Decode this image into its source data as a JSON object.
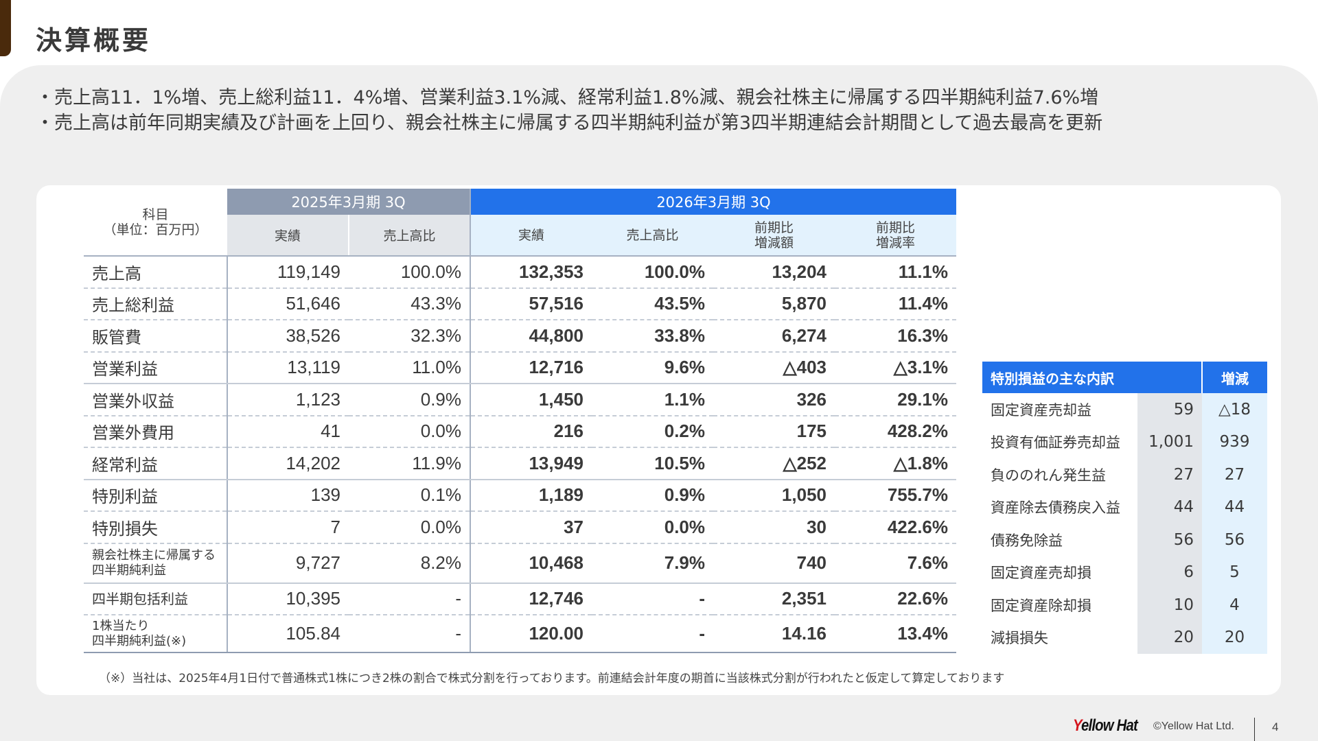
{
  "header": {
    "title": "決算概要"
  },
  "summary": {
    "bullets": [
      "・売上高11．1%増、売上総利益11．4%増、営業利益3.1%減、経常利益1.8%減、親会社株主に帰属する四半期純利益7.6%増",
      "・売上高は前年同期実績及び計画を上回り、親会社株主に帰属する四半期純利益が第3四半期連結会計期間として過去最高を更新"
    ]
  },
  "main_table": {
    "label_header_line1": "科目",
    "label_header_line2": "（単位：百万円）",
    "prev_period": "2025年3月期 3Q",
    "cur_period": "2026年3月期 3Q",
    "prev_cols": [
      "実績",
      "売上高比"
    ],
    "cur_cols": [
      {
        "line1": "実績",
        "line2": ""
      },
      {
        "line1": "売上高比",
        "line2": ""
      },
      {
        "line1": "前期比",
        "line2": "増減額"
      },
      {
        "line1": "前期比",
        "line2": "増減率"
      }
    ],
    "rows": [
      {
        "label": "売上高",
        "label2": "",
        "prev_actual": "119,149",
        "prev_ratio": "100.0%",
        "cur_actual": "132,353",
        "cur_ratio": "100.0%",
        "yoy_amount": "13,204",
        "yoy_rate": "11.1%"
      },
      {
        "label": "売上総利益",
        "label2": "",
        "prev_actual": "51,646",
        "prev_ratio": "43.3%",
        "cur_actual": "57,516",
        "cur_ratio": "43.5%",
        "yoy_amount": "5,870",
        "yoy_rate": "11.4%"
      },
      {
        "label": "販管費",
        "label2": "",
        "prev_actual": "38,526",
        "prev_ratio": "32.3%",
        "cur_actual": "44,800",
        "cur_ratio": "33.8%",
        "yoy_amount": "6,274",
        "yoy_rate": "16.3%"
      },
      {
        "label": "営業利益",
        "label2": "",
        "prev_actual": "13,119",
        "prev_ratio": "11.0%",
        "cur_actual": "12,716",
        "cur_ratio": "9.6%",
        "yoy_amount": "△403",
        "yoy_rate": "△3.1%"
      },
      {
        "label": "営業外収益",
        "label2": "",
        "prev_actual": "1,123",
        "prev_ratio": "0.9%",
        "cur_actual": "1,450",
        "cur_ratio": "1.1%",
        "yoy_amount": "326",
        "yoy_rate": "29.1%"
      },
      {
        "label": "営業外費用",
        "label2": "",
        "prev_actual": "41",
        "prev_ratio": "0.0%",
        "cur_actual": "216",
        "cur_ratio": "0.2%",
        "yoy_amount": "175",
        "yoy_rate": "428.2%"
      },
      {
        "label": "経常利益",
        "label2": "",
        "prev_actual": "14,202",
        "prev_ratio": "11.9%",
        "cur_actual": "13,949",
        "cur_ratio": "10.5%",
        "yoy_amount": "△252",
        "yoy_rate": "△1.8%"
      },
      {
        "label": "特別利益",
        "label2": "",
        "prev_actual": "139",
        "prev_ratio": "0.1%",
        "cur_actual": "1,189",
        "cur_ratio": "0.9%",
        "yoy_amount": "1,050",
        "yoy_rate": "755.7%"
      },
      {
        "label": "特別損失",
        "label2": "",
        "prev_actual": "7",
        "prev_ratio": "0.0%",
        "cur_actual": "37",
        "cur_ratio": "0.0%",
        "yoy_amount": "30",
        "yoy_rate": "422.6%"
      },
      {
        "label": "親会社株主に帰属する",
        "label2": "四半期純利益",
        "prev_actual": "9,727",
        "prev_ratio": "8.2%",
        "cur_actual": "10,468",
        "cur_ratio": "7.9%",
        "yoy_amount": "740",
        "yoy_rate": "7.6%"
      },
      {
        "label": "四半期包括利益",
        "label2": "",
        "prev_actual": "10,395",
        "prev_ratio": "-",
        "cur_actual": "12,746",
        "cur_ratio": "-",
        "yoy_amount": "2,351",
        "yoy_rate": "22.6%"
      },
      {
        "label": "1株当たり",
        "label2": "四半期純利益(※)",
        "prev_actual": "105.84",
        "prev_ratio": "-",
        "cur_actual": "120.00",
        "cur_ratio": "-",
        "yoy_amount": "14.16",
        "yoy_rate": "13.4%"
      }
    ]
  },
  "side_table": {
    "title": "特別損益の主な内訳",
    "delta_header": "増減",
    "rows": [
      {
        "label": "固定資産売却益",
        "value": "59",
        "delta": "△18"
      },
      {
        "label": "投資有価証券売却益",
        "value": "1,001",
        "delta": "939"
      },
      {
        "label": "負ののれん発生益",
        "value": "27",
        "delta": "27"
      },
      {
        "label": "資産除去債務戻入益",
        "value": "44",
        "delta": "44"
      },
      {
        "label": "債務免除益",
        "value": "56",
        "delta": "56"
      },
      {
        "label": "固定資産売却損",
        "value": "6",
        "delta": "5"
      },
      {
        "label": "固定資産除却損",
        "value": "10",
        "delta": "4"
      },
      {
        "label": "減損損失",
        "value": "20",
        "delta": "20"
      }
    ]
  },
  "footnote": "（※）当社は、2025年4月1日付で普通株式1株につき2株の割合で株式分割を行っております。前連結会計年度の期首に当該株式分割が行われたと仮定して算定しております",
  "footer": {
    "logo_mark": "Y",
    "logo_text": "ellow Hat",
    "copyright": "©Yellow Hat Ltd.",
    "page_number": "4"
  },
  "colors": {
    "accent_brown": "#4a2a0c",
    "header_blue": "#2272ea",
    "header_gray": "#8e9bb0",
    "light_blue": "#e3f2fd",
    "light_gray": "#e3e6ea",
    "logo_red": "#d4141c"
  }
}
